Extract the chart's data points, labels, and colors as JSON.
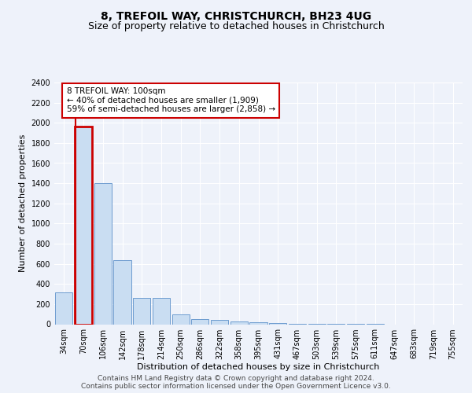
{
  "title": "8, TREFOIL WAY, CHRISTCHURCH, BH23 4UG",
  "subtitle": "Size of property relative to detached houses in Christchurch",
  "xlabel": "Distribution of detached houses by size in Christchurch",
  "ylabel": "Number of detached properties",
  "categories": [
    "34sqm",
    "70sqm",
    "106sqm",
    "142sqm",
    "178sqm",
    "214sqm",
    "250sqm",
    "286sqm",
    "322sqm",
    "358sqm",
    "395sqm",
    "431sqm",
    "467sqm",
    "503sqm",
    "539sqm",
    "575sqm",
    "611sqm",
    "647sqm",
    "683sqm",
    "719sqm",
    "755sqm"
  ],
  "bar_heights": [
    320,
    1960,
    1400,
    640,
    260,
    260,
    95,
    50,
    40,
    30,
    20,
    10,
    5,
    3,
    2,
    1,
    1,
    0,
    0,
    0,
    0
  ],
  "bar_color": "#c9ddf2",
  "bar_edge_color": "#5b8fc9",
  "highlight_bar_index": 1,
  "highlight_edge_color": "#cc0000",
  "highlight_line_color": "#cc0000",
  "ylim": [
    0,
    2400
  ],
  "yticks": [
    0,
    200,
    400,
    600,
    800,
    1000,
    1200,
    1400,
    1600,
    1800,
    2000,
    2200,
    2400
  ],
  "annotation_text": "8 TREFOIL WAY: 100sqm\n← 40% of detached houses are smaller (1,909)\n59% of semi-detached houses are larger (2,858) →",
  "annotation_box_color": "#ffffff",
  "annotation_box_edge_color": "#cc0000",
  "footer_text": "Contains HM Land Registry data © Crown copyright and database right 2024.\nContains public sector information licensed under the Open Government Licence v3.0.",
  "bg_color": "#eef2fa",
  "plot_bg_color": "#eef2fa",
  "grid_color": "#ffffff",
  "title_fontsize": 10,
  "subtitle_fontsize": 9,
  "xlabel_fontsize": 8,
  "ylabel_fontsize": 8,
  "tick_fontsize": 7,
  "annotation_fontsize": 7.5,
  "footer_fontsize": 6.5
}
